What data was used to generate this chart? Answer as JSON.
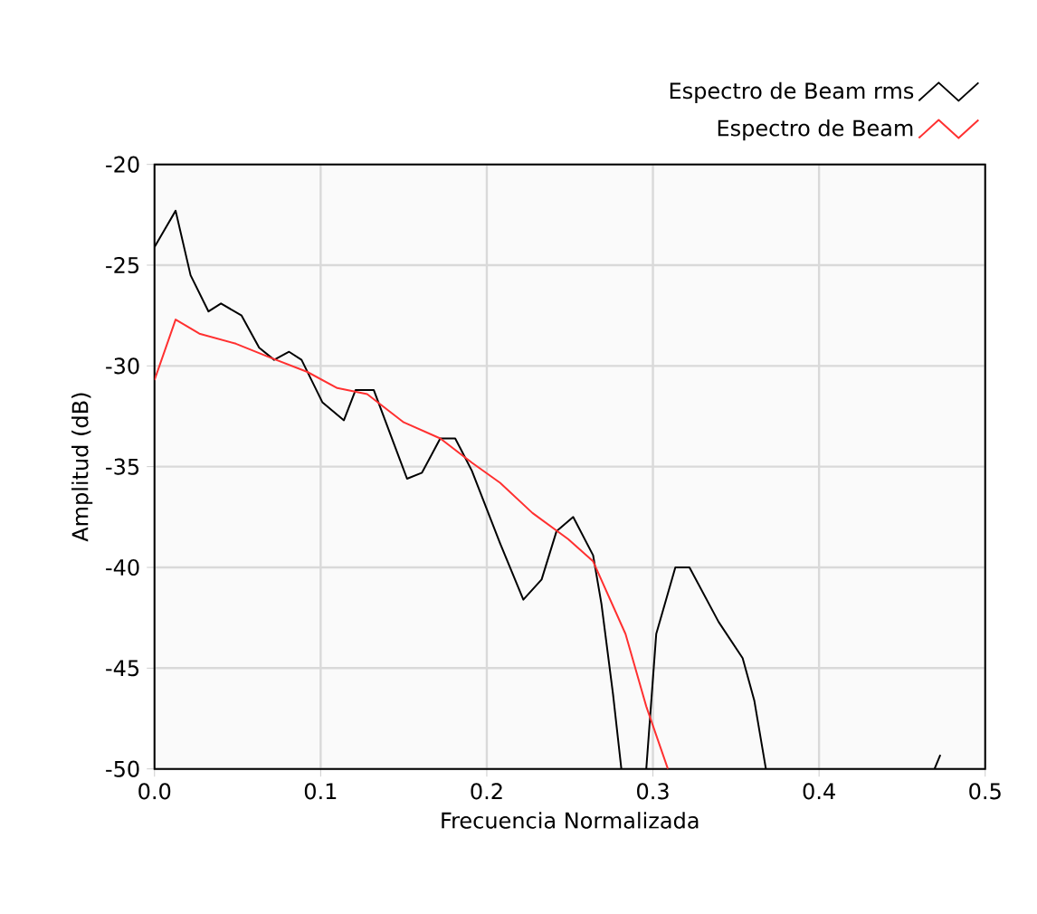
{
  "chart_data": {
    "type": "line",
    "xlabel": "Frecuencia Normalizada",
    "ylabel": "Amplitud (dB)",
    "xlim": [
      0,
      0.5
    ],
    "ylim": [
      -50,
      -20
    ],
    "xticks": [
      {
        "value": 0,
        "label": "0.0"
      },
      0.1,
      0.2,
      0.3,
      0.4,
      0.5
    ],
    "yticks": [
      -50,
      -45,
      -40,
      -35,
      -30,
      -25,
      -20
    ],
    "grid": true,
    "legend": "top right",
    "marker": "none",
    "line_style": "solid",
    "series": [
      {
        "name": "Espectro de Beam rms",
        "color": "#000000",
        "x": [
          0,
          0.0127,
          0.0217,
          0.0325,
          0.04,
          0.0524,
          0.063,
          0.072,
          0.081,
          0.0885,
          0.101,
          0.114,
          0.121,
          0.132,
          0.152,
          0.161,
          0.172,
          0.181,
          0.191,
          0.208,
          0.222,
          0.233,
          0.242,
          0.252,
          0.264,
          0.269,
          0.276,
          0.281,
          0.288,
          0.296,
          0.302,
          0.3135,
          0.322,
          0.3395,
          0.354,
          0.361,
          0.368,
          0.42,
          0.4695,
          0.473
        ],
        "values": [
          -24.1,
          -22.3,
          -25.5,
          -27.3,
          -26.9,
          -27.5,
          -29.1,
          -29.7,
          -29.3,
          -29.7,
          -31.8,
          -32.7,
          -31.2,
          -31.2,
          -35.6,
          -35.3,
          -33.6,
          -33.6,
          -35.2,
          -38.8,
          -41.6,
          -40.6,
          -38.2,
          -37.5,
          -39.4,
          -41.8,
          -46.3,
          -50,
          null,
          -50,
          -43.3,
          -40.0,
          -40.0,
          -42.7,
          -44.5,
          -46.6,
          -50,
          null,
          -50,
          -49.3
        ]
      },
      {
        "name": "Espectro de Beam",
        "color": "#ff3030",
        "x": [
          0,
          0.0127,
          0.027,
          0.049,
          0.07,
          0.092,
          0.11,
          0.128,
          0.15,
          0.172,
          0.191,
          0.208,
          0.2275,
          0.249,
          0.264,
          0.2835,
          0.296,
          0.309
        ],
        "values": [
          -30.7,
          -27.7,
          -28.4,
          -28.9,
          -29.6,
          -30.3,
          -31.1,
          -31.4,
          -32.8,
          -33.6,
          -34.8,
          -35.8,
          -37.3,
          -38.6,
          -39.7,
          -43.3,
          -46.9,
          -50
        ]
      }
    ]
  }
}
